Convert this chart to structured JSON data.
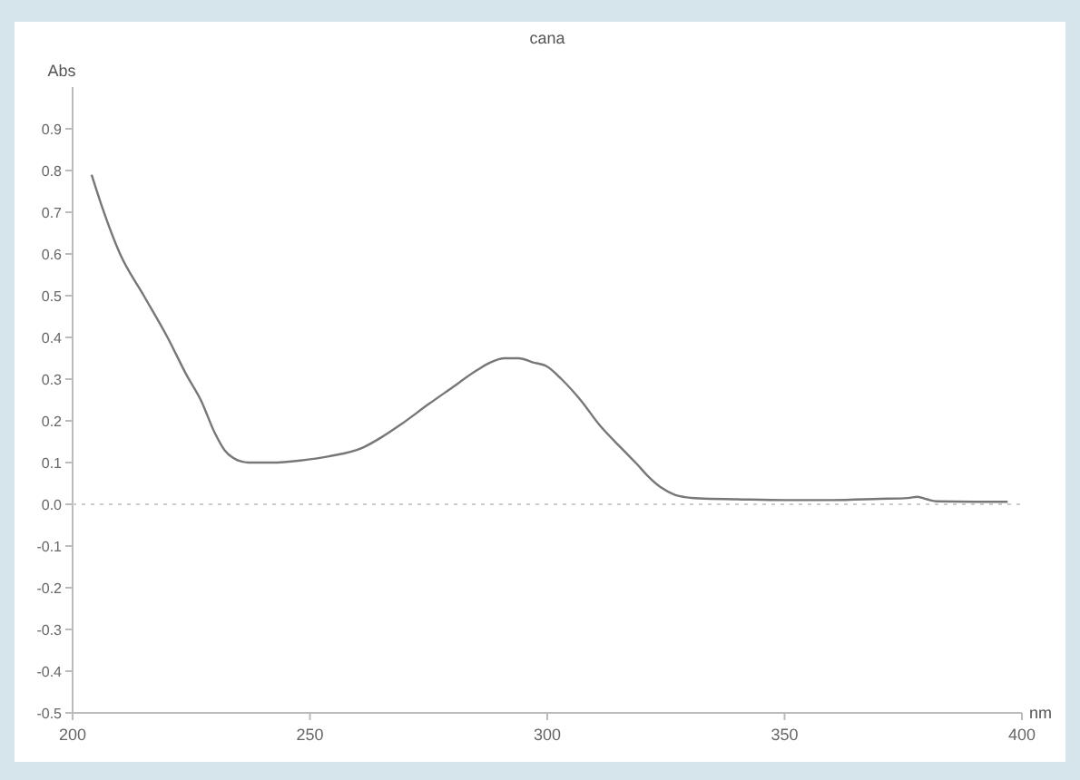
{
  "chart_data": {
    "type": "line",
    "title": "cana",
    "xlabel": "nm",
    "ylabel": "Abs",
    "xlim": [
      200,
      400
    ],
    "xticks": [
      200,
      250,
      300,
      350,
      400
    ],
    "ylim": [
      -0.5,
      1.0
    ],
    "yticks": [
      {
        "value": -0.5,
        "label": "-0.5"
      },
      {
        "value": -0.4,
        "label": "-0.4"
      },
      {
        "value": -0.3,
        "label": "-0.3"
      },
      {
        "value": -0.2,
        "label": "-0.2"
      },
      {
        "value": -0.1,
        "label": "-0.1"
      },
      {
        "value": 0,
        "label": "0.0"
      },
      0.1,
      0.2,
      0.3,
      0.4,
      0.5,
      0.6,
      0.7,
      0.8,
      0.9
    ],
    "grid": false,
    "marker": "none",
    "line_style": "solid",
    "ref_lines": [
      {
        "axis": "y",
        "value": 0,
        "color": "#cccccc",
        "line_style": "dotted"
      }
    ],
    "series": [
      {
        "color": "#777777",
        "x": [
          204,
          206,
          210,
          215,
          220,
          224,
          227,
          230,
          232,
          234,
          237,
          242,
          248,
          254,
          261,
          265,
          269,
          275,
          280,
          285,
          288,
          291,
          294,
          297,
          300,
          303,
          307,
          311,
          316,
          319,
          321,
          324,
          327,
          329,
          332,
          340,
          350,
          360,
          370,
          376,
          378,
          380,
          382,
          390,
          397
        ],
        "values": [
          0.79,
          0.72,
          0.6,
          0.5,
          0.4,
          0.31,
          0.25,
          0.17,
          0.13,
          0.11,
          0.1,
          0.1,
          0.105,
          0.115,
          0.135,
          0.16,
          0.19,
          0.24,
          0.28,
          0.32,
          0.34,
          0.35,
          0.35,
          0.34,
          0.33,
          0.3,
          0.25,
          0.19,
          0.13,
          0.095,
          0.07,
          0.04,
          0.022,
          0.017,
          0.014,
          0.012,
          0.01,
          0.01,
          0.013,
          0.015,
          0.018,
          0.012,
          0.007,
          0.006,
          0.006
        ]
      }
    ]
  }
}
